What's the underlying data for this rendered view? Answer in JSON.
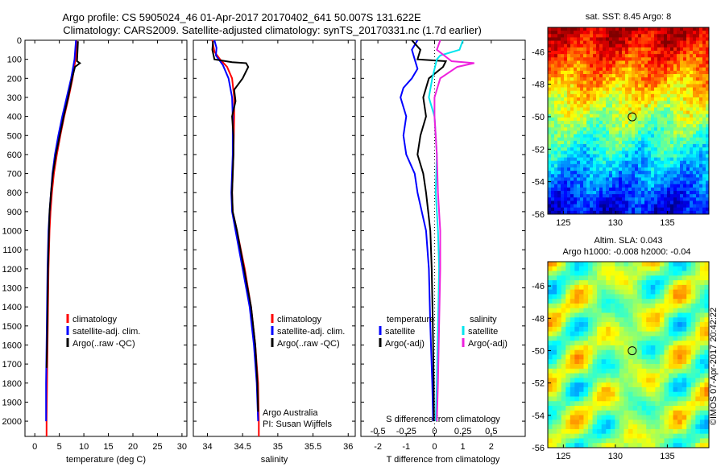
{
  "title": {
    "line1": "Argo profile: CS 5905024_46 01-Apr-2017 20170402_641 50.007S 131.622E",
    "line2": "Climatology: CARS2009. Satellite-adjusted climatology: synTS_20170331.nc (1.7d earlier)"
  },
  "sidebar_text": "©IMOS 07-Apr-2017 20:42:22",
  "colors": {
    "red": "#ff0000",
    "blue": "#0000ff",
    "black": "#000000",
    "cyan": "#00e5ee",
    "magenta": "#ee22dd"
  },
  "chart_data": [
    {
      "type": "line",
      "xlabel": "temperature (deg C)",
      "xlim": [
        -2,
        31
      ],
      "ylim": [
        2080,
        0
      ],
      "xticks": [
        0,
        5,
        10,
        15,
        20,
        25,
        30
      ],
      "yticks": [
        0,
        100,
        200,
        300,
        400,
        500,
        600,
        700,
        800,
        900,
        1000,
        1100,
        1200,
        1300,
        1400,
        1500,
        1600,
        1700,
        1800,
        1900,
        2000
      ],
      "legend": [
        "climatology",
        "satellite-adj. clim.",
        "Argo(..raw -QC)"
      ],
      "series": [
        {
          "name": "climatology",
          "color": "red",
          "depth": [
            0,
            100,
            200,
            300,
            400,
            500,
            600,
            700,
            800,
            900,
            1000,
            1200,
            1400,
            1600,
            1800,
            2000,
            2080
          ],
          "values": [
            8.5,
            8.3,
            7.7,
            6.9,
            6.0,
            5.2,
            4.5,
            3.9,
            3.5,
            3.2,
            3.0,
            2.8,
            2.7,
            2.6,
            2.5,
            2.4,
            2.4
          ]
        },
        {
          "name": "satellite-adj. clim.",
          "color": "blue",
          "depth": [
            0,
            100,
            200,
            300,
            400,
            500,
            600,
            700,
            800,
            900,
            1000,
            1200,
            1400,
            1600,
            1800,
            2000
          ],
          "values": [
            8.4,
            8.1,
            7.4,
            6.5,
            5.6,
            4.8,
            4.1,
            3.6,
            3.3,
            3.0,
            2.8,
            2.6,
            2.5,
            2.4,
            2.3,
            2.3
          ]
        },
        {
          "name": "Argo(..raw -QC)",
          "color": "black",
          "depth": [
            5,
            60,
            110,
            120,
            140,
            200,
            300,
            400,
            500,
            600,
            700,
            800,
            900,
            1000,
            1200,
            1400,
            1600,
            1720
          ],
          "values": [
            8.8,
            8.7,
            8.6,
            9.2,
            8.2,
            7.6,
            6.8,
            5.9,
            5.1,
            4.3,
            3.7,
            3.3,
            3.0,
            2.9,
            2.7,
            2.6,
            2.5,
            2.4
          ]
        }
      ]
    },
    {
      "type": "line",
      "xlabel": "salinity",
      "xlim": [
        33.8,
        36.1
      ],
      "ylim": [
        2080,
        0
      ],
      "xticks": [
        34,
        34.5,
        35,
        35.5,
        36
      ],
      "legend": [
        "climatology",
        "satellite-adj. clim.",
        "Argo(..raw -QC)"
      ],
      "annotation": [
        "Argo Australia",
        "PI: Susan Wijffels"
      ],
      "series": [
        {
          "name": "climatology",
          "color": "red",
          "depth": [
            0,
            60,
            100,
            140,
            200,
            300,
            400,
            600,
            800,
            900,
            1000,
            1200,
            1400,
            1600,
            1800,
            2000,
            2080
          ],
          "values": [
            34.07,
            34.1,
            34.18,
            34.28,
            34.35,
            34.38,
            34.38,
            34.37,
            34.35,
            34.36,
            34.42,
            34.53,
            34.62,
            34.68,
            34.72,
            34.73,
            34.73
          ]
        },
        {
          "name": "satellite-adj. clim.",
          "color": "blue",
          "depth": [
            0,
            40,
            80,
            100,
            130,
            200,
            300,
            400,
            600,
            800,
            900,
            1000,
            1200,
            1400,
            1600,
            1800,
            2000
          ],
          "values": [
            34.1,
            34.13,
            34.12,
            34.16,
            34.22,
            34.3,
            34.35,
            34.36,
            34.36,
            34.34,
            34.35,
            34.4,
            34.5,
            34.6,
            34.66,
            34.7,
            34.72
          ]
        },
        {
          "name": "Argo(..raw -QC)",
          "color": "black",
          "depth": [
            5,
            50,
            100,
            115,
            120,
            140,
            200,
            260,
            320,
            400,
            500,
            600,
            800,
            900,
            1000,
            1200,
            1400,
            1600,
            1800,
            1950
          ],
          "values": [
            34.08,
            34.07,
            34.1,
            34.35,
            34.55,
            34.58,
            34.5,
            34.38,
            34.4,
            34.35,
            34.37,
            34.37,
            34.35,
            34.36,
            34.42,
            34.52,
            34.62,
            34.68,
            34.71,
            34.72
          ]
        }
      ]
    },
    {
      "type": "line",
      "xlabel": "T difference from climatology",
      "xlabel_top": "S difference from climatology",
      "xlim": [
        -2.6,
        3.2
      ],
      "xticks": [
        -2,
        -1,
        0,
        1,
        2
      ],
      "s_xlim": [
        -0.65,
        0.8
      ],
      "s_ticks": [
        -0.5,
        -0.25,
        0,
        0.25,
        0.5
      ],
      "ylim": [
        2080,
        0
      ],
      "legend": [
        "temperature",
        "satellite",
        "Argo(-adj)",
        "salinity",
        "satellite",
        "Argo(-adj)"
      ],
      "series": [
        {
          "name": "T satellite",
          "color": "blue",
          "axis": "t",
          "depth": [
            0,
            50,
            100,
            150,
            200,
            250,
            300,
            400,
            500,
            600,
            700,
            800,
            1000,
            1200,
            1500,
            1800,
            2000
          ],
          "values": [
            -0.6,
            -0.8,
            -0.7,
            -0.6,
            -0.8,
            -1.1,
            -1.2,
            -1.0,
            -1.1,
            -1.0,
            -0.7,
            -0.6,
            -0.3,
            -0.2,
            -0.15,
            -0.08,
            -0.05
          ]
        },
        {
          "name": "T Argo(-adj)",
          "color": "black",
          "axis": "t",
          "depth": [
            0,
            50,
            100,
            110,
            140,
            200,
            300,
            400,
            500,
            600,
            700,
            800,
            1000,
            1200,
            1500,
            1800,
            2000
          ],
          "values": [
            -0.8,
            -0.5,
            -0.6,
            0.4,
            0.3,
            -0.2,
            -0.4,
            -0.3,
            -0.5,
            -0.6,
            -0.4,
            -0.3,
            -0.15,
            -0.1,
            -0.06,
            -0.03,
            -0.02
          ]
        },
        {
          "name": "S satellite",
          "color": "cyan",
          "axis": "s",
          "depth": [
            0,
            50,
            80,
            100,
            200,
            300,
            400,
            600,
            800,
            1000,
            1200,
            1500,
            1800,
            2000
          ],
          "values": [
            0.25,
            0.22,
            0.05,
            0.02,
            -0.02,
            -0.05,
            0,
            0.02,
            0.01,
            0.03,
            0.04,
            0.03,
            0.02,
            0.01
          ]
        },
        {
          "name": "S Argo(-adj)",
          "color": "magenta",
          "axis": "s",
          "depth": [
            0,
            50,
            110,
            120,
            140,
            200,
            300,
            400,
            600,
            800,
            1000,
            1200,
            1500,
            1800,
            2000
          ],
          "values": [
            0.05,
            0.02,
            0.15,
            0.35,
            0.2,
            0.05,
            0.0,
            0.0,
            0.02,
            0.03,
            0.05,
            0.05,
            0.04,
            0.03,
            0.02
          ]
        }
      ]
    },
    {
      "type": "heatmap",
      "title": "sat. SST: 8.45 Argo: 8",
      "xlim": [
        123.5,
        139
      ],
      "ylim": [
        -56,
        -44.5
      ],
      "xticks": [
        125,
        130,
        135
      ],
      "yticks": [
        -46,
        -48,
        -50,
        -52,
        -54,
        -56
      ],
      "marker": {
        "lon": 131.622,
        "lat": -50.007
      }
    },
    {
      "type": "heatmap",
      "title_line1": "Altim. SLA: 0.043",
      "title_line2": "Argo h1000: -0.008 h2000: -0.04",
      "xlim": [
        123.5,
        139
      ],
      "ylim": [
        -56,
        -44.5
      ],
      "xticks": [
        125,
        130,
        135
      ],
      "yticks": [
        -46,
        -48,
        -50,
        -52,
        -54,
        -56
      ],
      "marker": {
        "lon": 131.622,
        "lat": -50.007
      }
    }
  ]
}
